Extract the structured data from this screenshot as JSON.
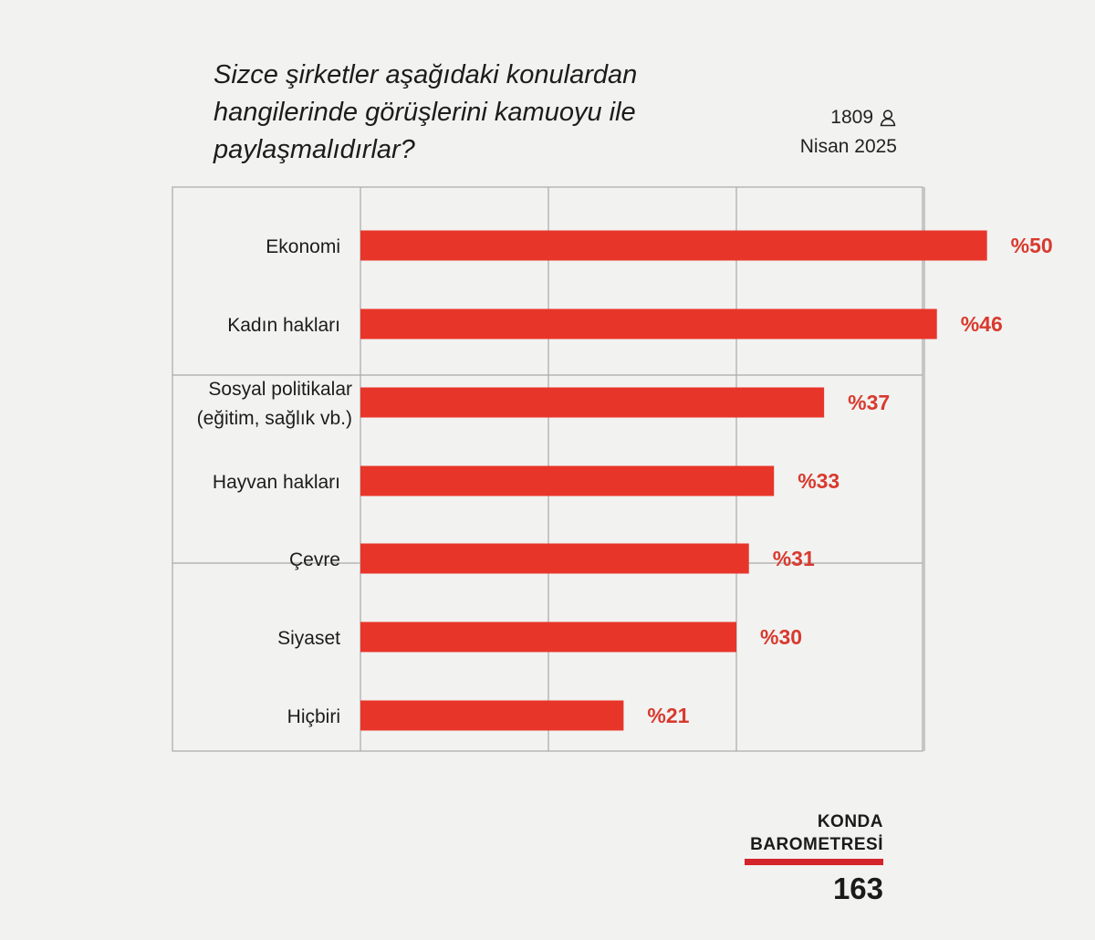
{
  "question": {
    "line1": "Sizce şirketler aşağıdaki konulardan",
    "line2": "hangilerinde görüşlerini kamuoyu ile",
    "line3": "paylaşmalıdırlar?"
  },
  "meta": {
    "sample_size": "1809",
    "sample_icon": "person-icon",
    "date": "Nisan 2025"
  },
  "brand": {
    "line1": "KONDA",
    "line2": "BAROMETRESİ",
    "issue": "163",
    "accent": "#d4232b"
  },
  "chart_data": {
    "type": "bar",
    "orientation": "horizontal",
    "bar_color": "#e8352a",
    "label_color": "#d83a2e",
    "grid": true,
    "value_prefix": "%",
    "xlim": [
      0,
      60
    ],
    "categories": [
      [
        "Ekonomi"
      ],
      [
        "Kadın hakları"
      ],
      [
        "Sosyal politikalar",
        "(eğitim, sağlık vb.)"
      ],
      [
        "Hayvan hakları"
      ],
      [
        "Çevre"
      ],
      [
        "Siyaset"
      ],
      [
        "Hiçbiri"
      ]
    ],
    "values": [
      50,
      46,
      37,
      33,
      31,
      30,
      21
    ]
  }
}
